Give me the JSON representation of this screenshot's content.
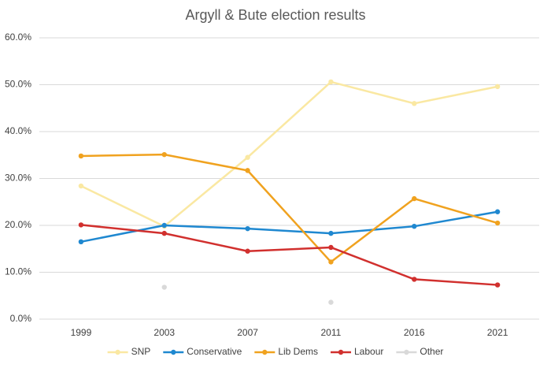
{
  "chart_data": {
    "type": "line",
    "title": "Argyll & Bute election results",
    "categories": [
      "1999",
      "2003",
      "2007",
      "2011",
      "2016",
      "2021"
    ],
    "series": [
      {
        "name": "SNP",
        "color": "#fae8a2",
        "values": [
          28.4,
          19.8,
          34.5,
          50.6,
          46.0,
          49.6
        ]
      },
      {
        "name": "Conservative",
        "color": "#1f88d0",
        "values": [
          16.5,
          20.0,
          19.3,
          18.3,
          19.8,
          22.9
        ]
      },
      {
        "name": "Lib Dems",
        "color": "#f0a21f",
        "values": [
          34.8,
          35.1,
          31.7,
          12.2,
          25.7,
          20.5
        ]
      },
      {
        "name": "Labour",
        "color": "#d1302e",
        "values": [
          20.1,
          18.3,
          14.5,
          15.3,
          8.5,
          7.3
        ]
      },
      {
        "name": "Other",
        "color": "#d9d9d9",
        "values": [
          null,
          6.8,
          null,
          3.6,
          null,
          null
        ],
        "show_line": false
      }
    ],
    "ylim": [
      0,
      60
    ],
    "yticks": [
      {
        "value": 0,
        "label": "0.0%"
      },
      {
        "value": 10,
        "label": "10.0%"
      },
      {
        "value": 20,
        "label": "20.0%"
      },
      {
        "value": 30,
        "label": "30.0%"
      },
      {
        "value": 40,
        "label": "40.0%"
      },
      {
        "value": 50,
        "label": "50.0%"
      },
      {
        "value": 60,
        "label": "60.0%"
      }
    ],
    "grid": true,
    "legend": "bottom"
  }
}
